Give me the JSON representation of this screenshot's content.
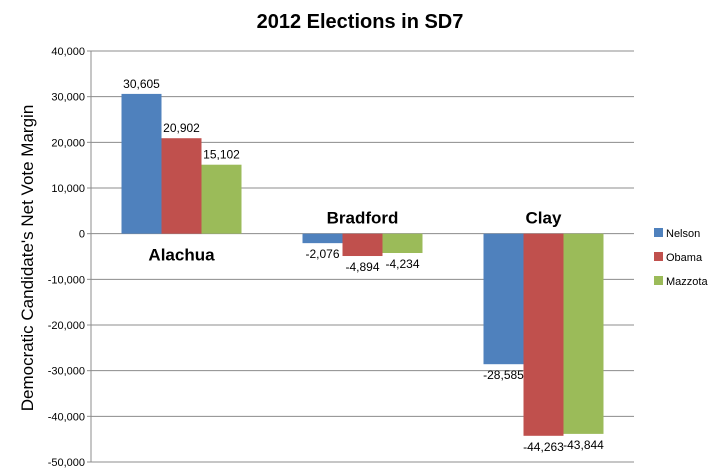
{
  "chart_data": {
    "type": "bar",
    "title": "2012 Elections in SD7",
    "ylabel": "Democratic Candidate's Net Vote Margin",
    "xlabel": "",
    "ylim": [
      -50000,
      40000
    ],
    "ytick_step": 10000,
    "yticks": [
      "40,000",
      "30,000",
      "20,000",
      "10,000",
      "0",
      "-10,000",
      "-20,000",
      "-30,000",
      "-40,000",
      "-50,000"
    ],
    "grid": true,
    "legend_position": "right",
    "categories": [
      "Alachua",
      "Bradford",
      "Clay"
    ],
    "series": [
      {
        "name": "Nelson",
        "color": "#4F81BD",
        "values": [
          30605,
          -2076,
          -28585
        ],
        "labels": [
          "30,605",
          "-2,076",
          "-28,585"
        ]
      },
      {
        "name": "Obama",
        "color": "#C0504D",
        "values": [
          20902,
          -4894,
          -44263
        ],
        "labels": [
          "20,902",
          "-4,894",
          "-44,263"
        ]
      },
      {
        "name": "Mazzota",
        "color": "#9BBB59",
        "values": [
          15102,
          -4234,
          -43844
        ],
        "labels": [
          "15,102",
          "-4,234",
          "-43,844"
        ]
      }
    ]
  }
}
